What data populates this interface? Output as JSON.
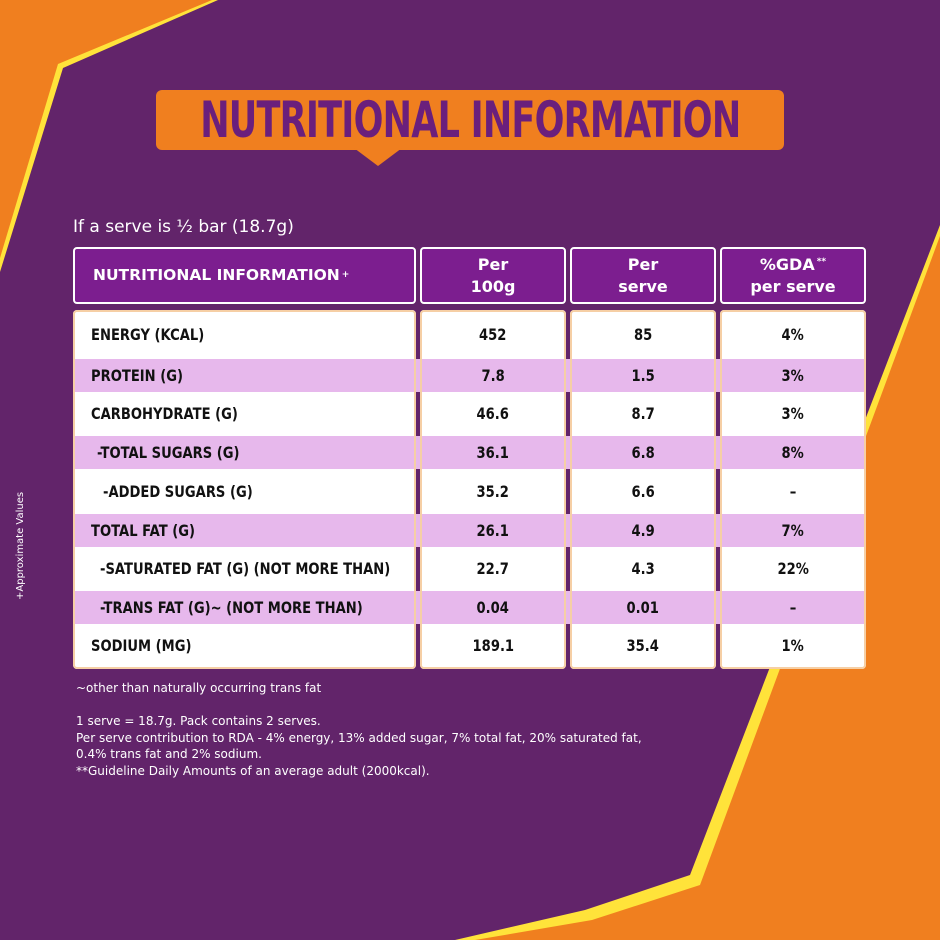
{
  "colors": {
    "background": "#62246a",
    "orange": "#f07f1f",
    "yellow": "#ffe33a",
    "header_purple": "#7c1e8f",
    "title_text": "#6a1f7c",
    "row_shade": "#e7b8ec",
    "cell_white": "#ffffff"
  },
  "title": "NUTRITIONAL INFORMATION",
  "serve_note": "If a serve is ½ bar (18.7g)",
  "table": {
    "headers": {
      "label": "NUTRITIONAL INFORMATION",
      "label_mark": "+",
      "per100_line1": "Per",
      "per100_line2": "100g",
      "perserve_line1": "Per",
      "perserve_line2": "serve",
      "gda_line1": "%GDA",
      "gda_mark": "**",
      "gda_line2": "per serve"
    },
    "rows": [
      {
        "label": "ENERGY (KCAL)",
        "per_100g": "452",
        "per_serve": "85",
        "gda": "4%"
      },
      {
        "label": "PROTEIN (G)",
        "per_100g": "7.8",
        "per_serve": "1.5",
        "gda": "3%"
      },
      {
        "label": "CARBOHYDRATE (G)",
        "per_100g": "46.6",
        "per_serve": "8.7",
        "gda": "3%"
      },
      {
        "label": "-TOTAL SUGARS (G)",
        "per_100g": "36.1",
        "per_serve": "6.8",
        "gda": "8%"
      },
      {
        "label": "-ADDED SUGARS (G)",
        "per_100g": "35.2",
        "per_serve": "6.6",
        "gda": "–"
      },
      {
        "label": "TOTAL FAT (G)",
        "per_100g": "26.1",
        "per_serve": "4.9",
        "gda": "7%"
      },
      {
        "label": "-SATURATED FAT (G) (NOT MORE THAN)",
        "per_100g": "22.7",
        "per_serve": "4.3",
        "gda": "22%"
      },
      {
        "label": "-TRANS FAT (G)~ (NOT MORE THAN)",
        "per_100g": "0.04",
        "per_serve": "0.01",
        "gda": "–"
      },
      {
        "label": "SODIUM (MG)",
        "per_100g": "189.1",
        "per_serve": "35.4",
        "gda": "1%"
      }
    ]
  },
  "side_note": "+Approximate Values",
  "footnotes": {
    "trans_fat": "~other than naturally occurring trans fat",
    "serve_line": "1 serve = 18.7g. Pack contains 2 serves.",
    "rda_line1": "Per serve contribution to RDA - 4% energy, 13% added sugar, 7% total fat, 20% saturated fat,",
    "rda_line2": "0.4% trans fat and 2% sodium.",
    "gda_line": "**Guideline Daily Amounts of an average adult (2000kcal)."
  }
}
